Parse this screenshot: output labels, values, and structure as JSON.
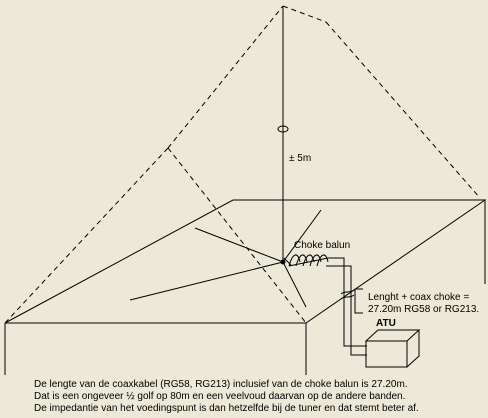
{
  "labels": {
    "height": "± 5m",
    "choke": "Choke balun",
    "length_line1": "Lenght + coax choke =",
    "length_line2": "27.20m RG58 or RG213.",
    "atu": "ATU"
  },
  "caption": [
    "De lengte van de coaxkabel (RG58, RG213) inclusief van de choke balun is 27.20m.",
    "Dat is een ongeveer ½ golf op 80m en een veelvoud daarvan op de andere banden.",
    "De impedantie van het voedingspunt is dan hetzelfde bij de tuner en dat stemt beter af."
  ]
}
